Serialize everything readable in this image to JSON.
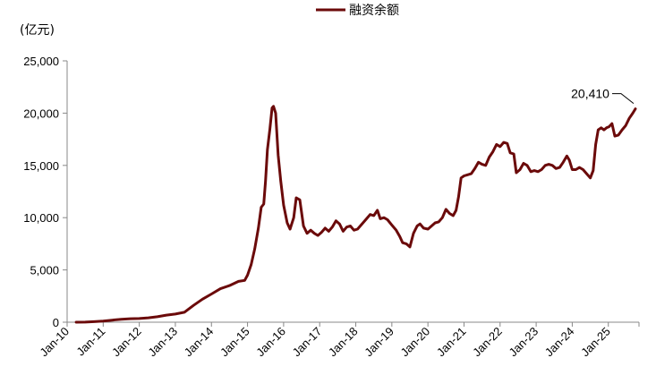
{
  "chart_data": {
    "type": "line",
    "unit_label": "(亿元)",
    "legend": [
      {
        "name": "融资余额",
        "color": "#6b0a0a"
      }
    ],
    "ylim": [
      0,
      25000
    ],
    "y_ticks": [
      0,
      5000,
      10000,
      15000,
      20000,
      25000
    ],
    "y_tick_labels": [
      "0",
      "5,000",
      "10,000",
      "15,000",
      "20,000",
      "25,000"
    ],
    "xlim": [
      2010.0,
      2025.85
    ],
    "x_ticks": [
      2010,
      2011,
      2012,
      2013,
      2014,
      2015,
      2016,
      2017,
      2018,
      2019,
      2020,
      2021,
      2022,
      2023,
      2024,
      2025
    ],
    "x_tick_labels": [
      "Jan-10",
      "Jan-11",
      "Jan-12",
      "Jan-13",
      "Jan-14",
      "Jan-15",
      "Jan-16",
      "Jan-17",
      "Jan-18",
      "Jan-19",
      "Jan-20",
      "Jan-21",
      "Jan-22",
      "Jan-23",
      "Jan-24",
      "Jan-25"
    ],
    "annotation": {
      "text": "20,410",
      "x": 2025.75,
      "y": 20410
    },
    "grid": false,
    "series": [
      {
        "name": "融资余额",
        "color": "#6b0a0a",
        "points": [
          [
            2010.25,
            0
          ],
          [
            2010.5,
            10
          ],
          [
            2010.75,
            50
          ],
          [
            2011.0,
            100
          ],
          [
            2011.25,
            200
          ],
          [
            2011.5,
            280
          ],
          [
            2011.75,
            330
          ],
          [
            2012.0,
            350
          ],
          [
            2012.25,
            420
          ],
          [
            2012.5,
            520
          ],
          [
            2012.75,
            680
          ],
          [
            2013.0,
            780
          ],
          [
            2013.25,
            950
          ],
          [
            2013.5,
            1600
          ],
          [
            2013.75,
            2200
          ],
          [
            2014.0,
            2700
          ],
          [
            2014.25,
            3200
          ],
          [
            2014.5,
            3500
          ],
          [
            2014.75,
            3900
          ],
          [
            2014.92,
            4000
          ],
          [
            2015.0,
            4500
          ],
          [
            2015.1,
            5500
          ],
          [
            2015.2,
            7000
          ],
          [
            2015.3,
            9000
          ],
          [
            2015.38,
            11000
          ],
          [
            2015.45,
            11300
          ],
          [
            2015.5,
            13500
          ],
          [
            2015.55,
            16500
          ],
          [
            2015.62,
            18500
          ],
          [
            2015.68,
            20500
          ],
          [
            2015.72,
            20650
          ],
          [
            2015.78,
            20000
          ],
          [
            2015.85,
            16000
          ],
          [
            2015.92,
            13500
          ],
          [
            2016.0,
            11200
          ],
          [
            2016.1,
            9500
          ],
          [
            2016.18,
            8900
          ],
          [
            2016.28,
            10000
          ],
          [
            2016.35,
            11900
          ],
          [
            2016.45,
            11700
          ],
          [
            2016.55,
            9200
          ],
          [
            2016.65,
            8500
          ],
          [
            2016.75,
            8800
          ],
          [
            2016.85,
            8500
          ],
          [
            2016.95,
            8300
          ],
          [
            2017.05,
            8600
          ],
          [
            2017.15,
            9000
          ],
          [
            2017.25,
            8700
          ],
          [
            2017.35,
            9100
          ],
          [
            2017.45,
            9700
          ],
          [
            2017.55,
            9400
          ],
          [
            2017.65,
            8700
          ],
          [
            2017.75,
            9100
          ],
          [
            2017.85,
            9200
          ],
          [
            2017.95,
            8800
          ],
          [
            2018.05,
            8900
          ],
          [
            2018.2,
            9500
          ],
          [
            2018.3,
            9900
          ],
          [
            2018.4,
            10300
          ],
          [
            2018.5,
            10200
          ],
          [
            2018.6,
            10700
          ],
          [
            2018.68,
            9900
          ],
          [
            2018.78,
            10000
          ],
          [
            2018.88,
            9800
          ],
          [
            2019.0,
            9300
          ],
          [
            2019.12,
            8800
          ],
          [
            2019.22,
            8200
          ],
          [
            2019.3,
            7600
          ],
          [
            2019.4,
            7500
          ],
          [
            2019.5,
            7200
          ],
          [
            2019.6,
            8500
          ],
          [
            2019.7,
            9200
          ],
          [
            2019.78,
            9400
          ],
          [
            2019.88,
            9000
          ],
          [
            2020.0,
            8900
          ],
          [
            2020.1,
            9200
          ],
          [
            2020.2,
            9500
          ],
          [
            2020.3,
            9600
          ],
          [
            2020.4,
            10000
          ],
          [
            2020.5,
            10800
          ],
          [
            2020.6,
            10400
          ],
          [
            2020.7,
            10200
          ],
          [
            2020.78,
            10700
          ],
          [
            2020.85,
            12000
          ],
          [
            2020.92,
            13800
          ],
          [
            2021.0,
            14000
          ],
          [
            2021.1,
            14100
          ],
          [
            2021.2,
            14200
          ],
          [
            2021.3,
            14700
          ],
          [
            2021.4,
            15300
          ],
          [
            2021.5,
            15100
          ],
          [
            2021.6,
            15000
          ],
          [
            2021.7,
            15800
          ],
          [
            2021.8,
            16300
          ],
          [
            2021.9,
            17000
          ],
          [
            2022.0,
            16800
          ],
          [
            2022.1,
            17200
          ],
          [
            2022.2,
            17100
          ],
          [
            2022.28,
            16200
          ],
          [
            2022.38,
            16100
          ],
          [
            2022.45,
            14300
          ],
          [
            2022.55,
            14600
          ],
          [
            2022.65,
            15200
          ],
          [
            2022.75,
            15000
          ],
          [
            2022.85,
            14400
          ],
          [
            2022.95,
            14500
          ],
          [
            2023.05,
            14400
          ],
          [
            2023.15,
            14600
          ],
          [
            2023.25,
            15000
          ],
          [
            2023.35,
            15100
          ],
          [
            2023.45,
            15000
          ],
          [
            2023.55,
            14700
          ],
          [
            2023.65,
            14800
          ],
          [
            2023.75,
            15300
          ],
          [
            2023.85,
            15900
          ],
          [
            2023.92,
            15500
          ],
          [
            2024.0,
            14600
          ],
          [
            2024.1,
            14600
          ],
          [
            2024.2,
            14800
          ],
          [
            2024.3,
            14600
          ],
          [
            2024.4,
            14200
          ],
          [
            2024.5,
            13800
          ],
          [
            2024.58,
            14500
          ],
          [
            2024.65,
            17000
          ],
          [
            2024.72,
            18400
          ],
          [
            2024.8,
            18600
          ],
          [
            2024.88,
            18400
          ],
          [
            2024.95,
            18600
          ],
          [
            2025.02,
            18700
          ],
          [
            2025.1,
            19000
          ],
          [
            2025.18,
            17800
          ],
          [
            2025.28,
            17900
          ],
          [
            2025.38,
            18400
          ],
          [
            2025.48,
            18800
          ],
          [
            2025.58,
            19500
          ],
          [
            2025.68,
            20000
          ],
          [
            2025.75,
            20410
          ]
        ]
      }
    ]
  }
}
